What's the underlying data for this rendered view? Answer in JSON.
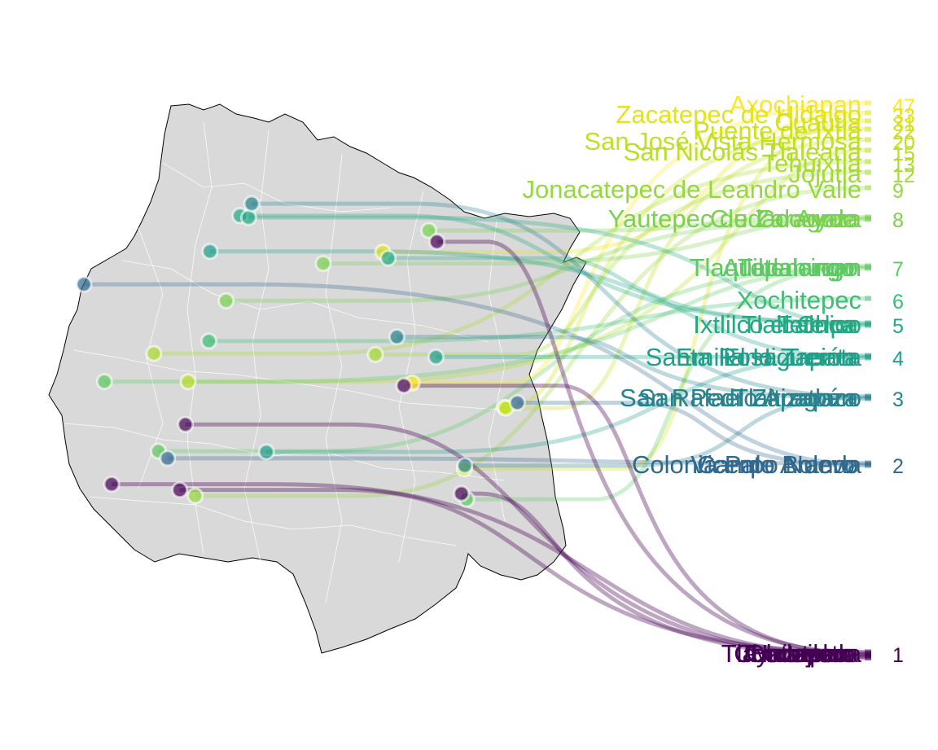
{
  "chart_data": {
    "type": "bump-map",
    "title": "",
    "xlabel": "",
    "ylabel": "",
    "colors": {
      "map_fill": "#d9d9d9",
      "map_stroke": "#000000",
      "map_inner_lines": "#ffffff",
      "palette": "viridis"
    },
    "categories": [
      {
        "rank": 47,
        "color": "#fde725",
        "names": [
          "Axochiapan"
        ]
      },
      {
        "rank": 33,
        "color": "#e3e418",
        "names": [
          "Zacatepec de Hidalgo"
        ]
      },
      {
        "rank": 31,
        "color": "#d8e219",
        "names": [
          "Cuautla"
        ]
      },
      {
        "rank": 22,
        "color": "#cde11d",
        "names": [
          "Puente de Ixtla"
        ]
      },
      {
        "rank": 20,
        "color": "#c2df23",
        "names": [
          "San José Vista Hermosa"
        ]
      },
      {
        "rank": 15,
        "color": "#b8de29",
        "names": [
          "San Nicolás Tlaleana"
        ]
      },
      {
        "rank": 13,
        "color": "#addc30",
        "names": [
          "Tehuixtla"
        ]
      },
      {
        "rank": 12,
        "color": "#a2da37",
        "names": [
          "Jojutla"
        ]
      },
      {
        "rank": 9,
        "color": "#95d840",
        "names": [
          "Jonacatepec de Leandro Valle"
        ]
      },
      {
        "rank": 8,
        "color": "#7ad151",
        "names": [
          "Yautepec de Zaragoza",
          "Ciudad Ayala",
          "Cocoyoc"
        ]
      },
      {
        "rank": 7,
        "color": "#5ec962",
        "names": [
          "Atlatlahucan",
          "Tepalcingo",
          "Tlaquiltenango"
        ]
      },
      {
        "rank": 6,
        "color": "#3fbc73",
        "names": [
          "Xochitepec"
        ]
      },
      {
        "rank": 5,
        "color": "#22a884",
        "names": [
          "Ixtlilco el Chico",
          "Tetelpa",
          "Tlalcaluca"
        ]
      },
      {
        "rank": 4,
        "color": "#1f9e89",
        "names": [
          "Santa Rosa Treinta",
          "Emiliano Zapata",
          "El Higuerón"
        ]
      },
      {
        "rank": 3,
        "color": "#26828e",
        "names": [
          "San Pedro Apatlaco",
          "San Rafael Zaragoza",
          "Tlaltizapán"
        ]
      },
      {
        "rank": 2,
        "color": "#31688e",
        "names": [
          "Vicente Aranda",
          "Campo Nuevo",
          "Colonia Palo Bolero"
        ]
      },
      {
        "rank": 1,
        "color": "#440154",
        "names": [
          "Chinameca",
          "Cocoyotla",
          "Coatetelco",
          "Tlayacapan",
          "Totolapan",
          "Huitzilac"
        ]
      }
    ]
  }
}
